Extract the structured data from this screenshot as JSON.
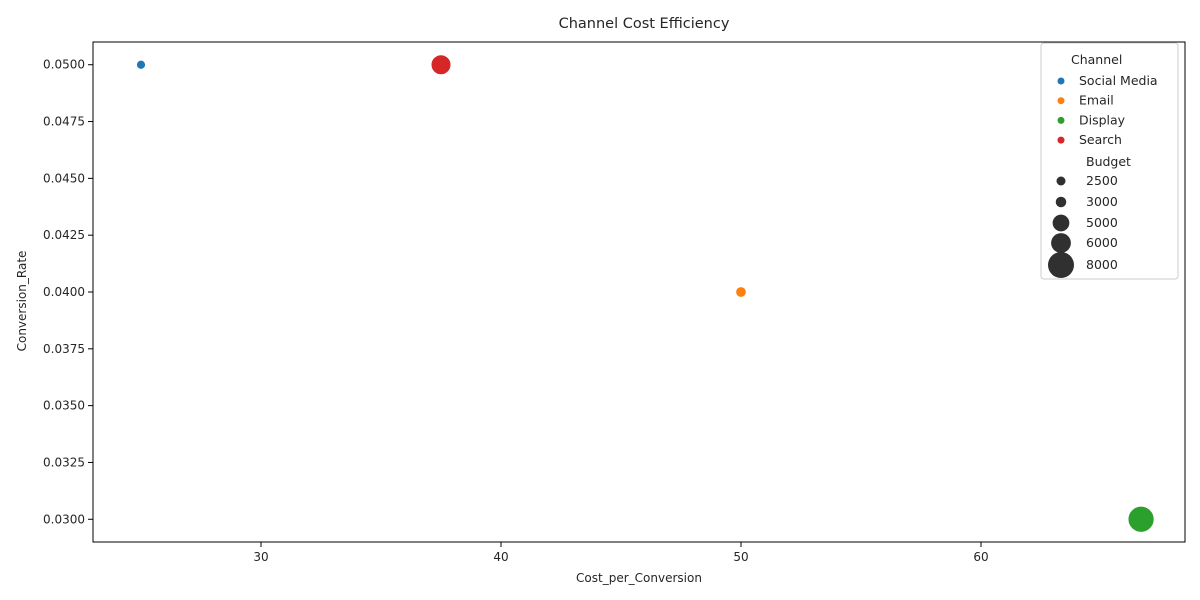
{
  "chart_data": {
    "type": "scatter",
    "title": "Channel Cost Efficiency",
    "xlabel": "Cost_per_Conversion",
    "ylabel": "Conversion_Rate",
    "xlim": [
      23.0,
      68.5
    ],
    "ylim": [
      0.029,
      0.051
    ],
    "xticks": [
      30,
      40,
      50,
      60
    ],
    "xtick_labels": [
      "30",
      "40",
      "50",
      "60"
    ],
    "yticks": [
      0.03,
      0.0325,
      0.035,
      0.0375,
      0.04,
      0.0425,
      0.045,
      0.0475,
      0.05
    ],
    "ytick_labels": [
      "0.0300",
      "0.0325",
      "0.0350",
      "0.0375",
      "0.0400",
      "0.0425",
      "0.0450",
      "0.0475",
      "0.0500"
    ],
    "grid": false,
    "legend_position": "top-right",
    "hue_title": "Channel",
    "size_title": "Budget",
    "series": [
      {
        "name": "Social Media",
        "color": "#1f77b4",
        "points": [
          {
            "x": 25.0,
            "y": 0.05,
            "budget": 2500
          }
        ]
      },
      {
        "name": "Email",
        "color": "#ff7f0e",
        "points": [
          {
            "x": 50.0,
            "y": 0.04,
            "budget": 3000
          }
        ]
      },
      {
        "name": "Display",
        "color": "#2ca02c",
        "points": [
          {
            "x": 66.67,
            "y": 0.03,
            "budget": 8000
          }
        ]
      },
      {
        "name": "Search",
        "color": "#d62728",
        "points": [
          {
            "x": 37.5,
            "y": 0.05,
            "budget": 6000
          }
        ]
      }
    ],
    "size_legend": [
      {
        "label": "2500",
        "value": 2500
      },
      {
        "label": "3000",
        "value": 3000
      },
      {
        "label": "5000",
        "value": 5000
      },
      {
        "label": "6000",
        "value": 6000
      },
      {
        "label": "8000",
        "value": 8000
      }
    ],
    "size_legend_color": "#303030"
  }
}
